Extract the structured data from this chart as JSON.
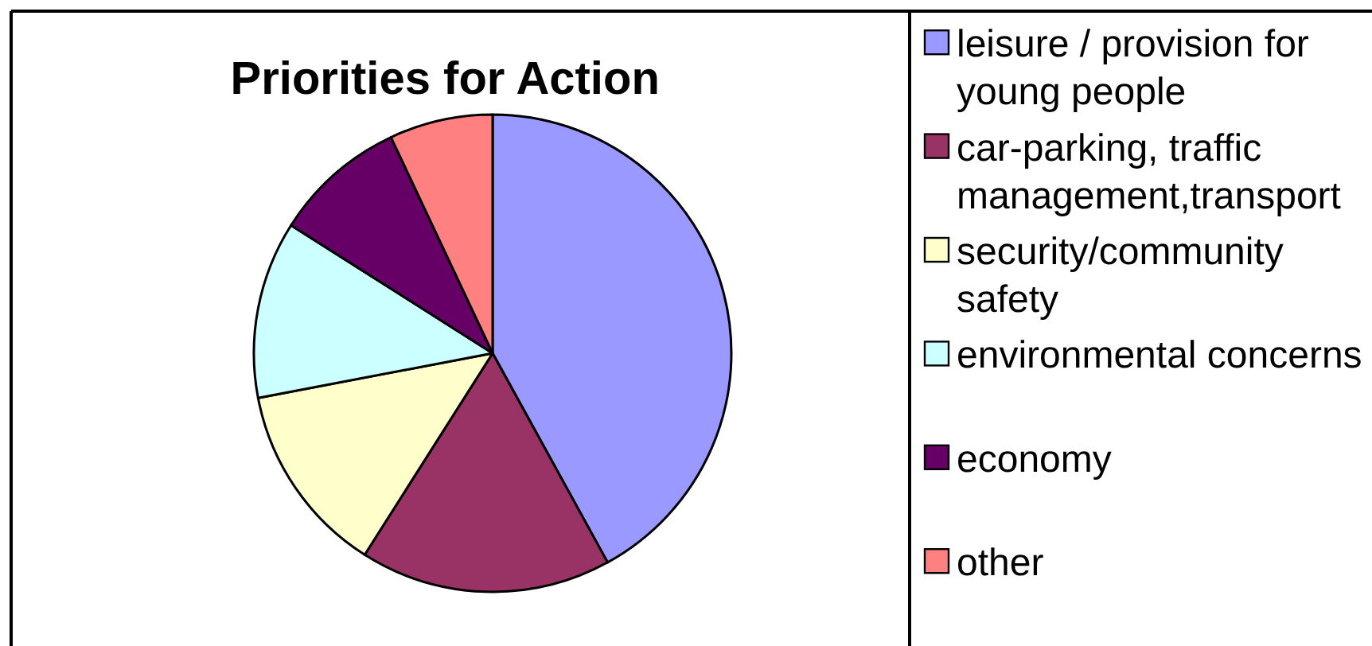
{
  "chart_data": {
    "type": "pie",
    "title": "Priorities for Action",
    "categories": [
      "leisure / provision for young people",
      "car-parking, traffic management,transport",
      "security/community safety",
      "environmental concerns",
      "economy",
      "other"
    ],
    "values": [
      42,
      17,
      13,
      12,
      9,
      7
    ],
    "colors": [
      "#9999ff",
      "#993366",
      "#ffffcc",
      "#ccffff",
      "#660066",
      "#ff8080"
    ],
    "legend": "right"
  }
}
